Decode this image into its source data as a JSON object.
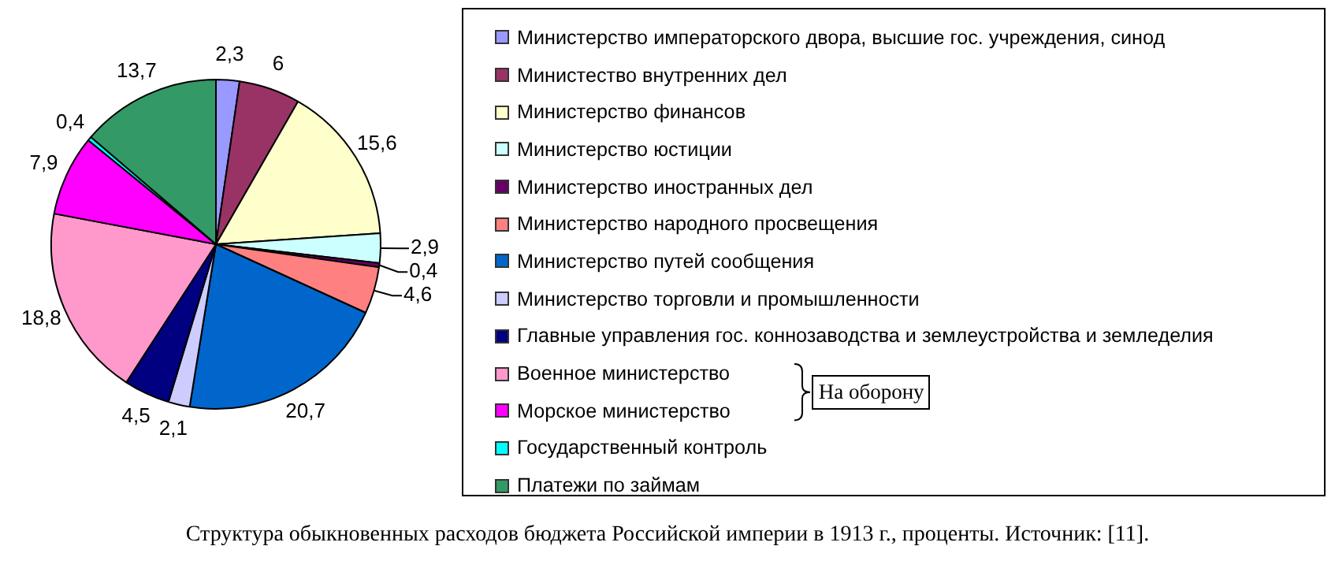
{
  "chart_data": {
    "type": "pie",
    "title": "Структура обыкновенных расходов бюджета Российской империи в 1913 г., проценты. Источник:  [11].",
    "categories": [
      "Министерство императорского двора, высшие гос. учреждения, синод",
      "Министество внутренних дел",
      "Министерство финансов",
      "Министерство юстиции",
      "Министерство иностранных дел",
      "Министерство народного просвещения",
      "Министерство путей сообщения",
      "Министерство торговли и промышленности",
      "Главные управления гос. коннозаводства и землеустройства и земледелия",
      "Военное министерство",
      "Морское министерство",
      "Государственный контроль",
      "Платежи по займам"
    ],
    "values": [
      2.3,
      6,
      15.6,
      2.9,
      0.4,
      4.6,
      20.7,
      2.1,
      4.5,
      18.8,
      7.9,
      0.4,
      13.7
    ],
    "value_labels": [
      "2,3",
      "6",
      "15,6",
      "2,9",
      "0,4",
      "4,6",
      "20,7",
      "2,1",
      "4,5",
      "18,8",
      "7,9",
      "0,4",
      "13,7"
    ],
    "colors": [
      "#9999ff",
      "#993366",
      "#ffffcc",
      "#ccffff",
      "#660066",
      "#ff8080",
      "#0066cc",
      "#ccccff",
      "#000080",
      "#ff99cc",
      "#ff00ff",
      "#00ffff",
      "#339966"
    ],
    "legend": "right",
    "annotations": [
      "На оборону"
    ]
  }
}
